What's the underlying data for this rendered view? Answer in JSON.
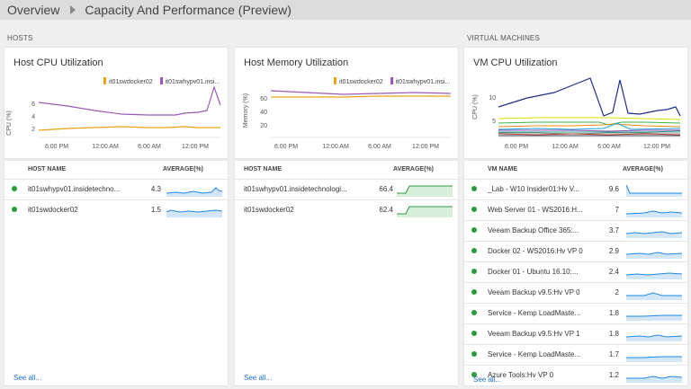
{
  "breadcrumb": {
    "root": "Overview",
    "current": "Capacity And Performance (Preview)"
  },
  "sections": {
    "hosts": "HOSTS",
    "vms": "VIRTUAL MACHINES"
  },
  "host_cpu": {
    "title": "Host CPU Utilization",
    "legend": [
      {
        "label": "it01swdocker02",
        "color": "#e8a317"
      },
      {
        "label": "it01swhypv01.insi...",
        "color": "#9b59b6"
      }
    ],
    "ylabel": "CPU (%)",
    "yticks": [
      "2",
      "4",
      "6"
    ],
    "xticks": [
      "6:00 PM",
      "12:00 AM",
      "6:00 AM",
      "12:00 PM"
    ]
  },
  "host_mem": {
    "title": "Host Memory Utilization",
    "legend": [
      {
        "label": "it01swdocker02",
        "color": "#e8a317"
      },
      {
        "label": "it01swhypv01.insi...",
        "color": "#9b59b6"
      }
    ],
    "ylabel": "Memory (%)",
    "yticks": [
      "20",
      "40",
      "60"
    ],
    "xticks": [
      "6:00 PM",
      "12:00 AM",
      "6:00 AM",
      "12:00 PM"
    ]
  },
  "vm_cpu": {
    "title": "VM CPU Utilization",
    "ylabel": "CPU (%)",
    "yticks": [
      "5",
      "10"
    ],
    "xticks": [
      "6:00 PM",
      "12:00 AM",
      "6:00 AM",
      "12:00 PM"
    ]
  },
  "host_cpu_table": {
    "headers": {
      "name": "HOST NAME",
      "avg": "AVERAGE(%)"
    },
    "rows": [
      {
        "name": "it01swhypv01.insidetechno...",
        "value": "4.3"
      },
      {
        "name": "it01swdocker02",
        "value": "1.5"
      }
    ],
    "see_all": "See all..."
  },
  "host_mem_table": {
    "headers": {
      "name": "HOST NAME",
      "avg": "AVERAGE(%)"
    },
    "rows": [
      {
        "name": "it01swhypv01.insidetechnologi...",
        "value": "66.4"
      },
      {
        "name": "it01swdocker02",
        "value": "62.4"
      }
    ],
    "see_all": "See all..."
  },
  "vm_table": {
    "headers": {
      "name": "VM NAME",
      "avg": "AVERAGE(%)"
    },
    "rows": [
      {
        "name": "_Lab - W10 Insider01:Hv V...",
        "value": "9.6"
      },
      {
        "name": "Web Server 01 - WS2016:H...",
        "value": "7"
      },
      {
        "name": "Veeam Backup Office 365:...",
        "value": "3.7"
      },
      {
        "name": "Docker 02 - WS2016:Hv VP 0",
        "value": "2.9"
      },
      {
        "name": "Docker 01 - Ubuntu 16.10:...",
        "value": "2.4"
      },
      {
        "name": "Veeam Backup v9.5:Hv VP 0",
        "value": "2"
      },
      {
        "name": "Service - Kemp LoadMaste...",
        "value": "1.8"
      },
      {
        "name": "Veeam Backup v9.5:Hv VP 1",
        "value": "1.8"
      },
      {
        "name": "Service - Kemp LoadMaste...",
        "value": "1.7"
      },
      {
        "name": "Azure Tools:Hv VP 0",
        "value": "1.2"
      }
    ],
    "see_all": "See all..."
  },
  "colors": {
    "status_ok": "#2c9a3d",
    "link": "#1a6fc4",
    "sparkline": "#1e88e5",
    "sparkline_mem": "#2c9a3d"
  }
}
